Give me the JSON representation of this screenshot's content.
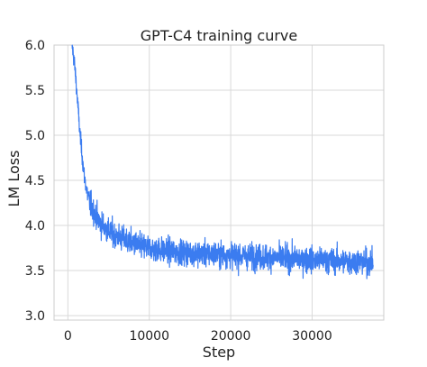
{
  "chart_data": {
    "type": "line",
    "title": "GPT-C4 training curve",
    "xlabel": "Step",
    "ylabel": "LM Loss",
    "xlim": [
      -1700,
      38800
    ],
    "ylim": [
      2.95,
      6.0
    ],
    "x_ticks": [
      0,
      10000,
      20000,
      30000
    ],
    "x_tick_labels": [
      "0",
      "10000",
      "20000",
      "30000"
    ],
    "y_ticks": [
      3.0,
      3.5,
      4.0,
      4.5,
      5.0,
      5.5,
      6.0
    ],
    "y_tick_labels": [
      "3.0",
      "3.5",
      "4.0",
      "4.5",
      "5.0",
      "5.5",
      "6.0"
    ],
    "grid": true,
    "line_color": "#3b7cf0",
    "grid_color": "#d9d9d9",
    "axes_edge_color": "#cccccc",
    "series": [
      {
        "x": [
          500,
          750,
          1000,
          1500,
          2000,
          2500,
          3000,
          3500,
          4000,
          5000,
          6000,
          7000,
          8000,
          9000,
          10000,
          12000,
          14000,
          16000,
          18000,
          20000,
          22000,
          24000,
          26000,
          28000,
          30000,
          32000,
          34000,
          35000,
          36000,
          37000,
          37500
        ],
        "y": [
          6.0,
          5.85,
          5.6,
          5.0,
          4.55,
          4.3,
          4.18,
          4.1,
          4.02,
          3.94,
          3.88,
          3.84,
          3.8,
          3.77,
          3.75,
          3.72,
          3.7,
          3.69,
          3.68,
          3.67,
          3.66,
          3.65,
          3.64,
          3.63,
          3.62,
          3.61,
          3.6,
          3.6,
          3.6,
          3.59,
          3.59
        ]
      }
    ]
  }
}
